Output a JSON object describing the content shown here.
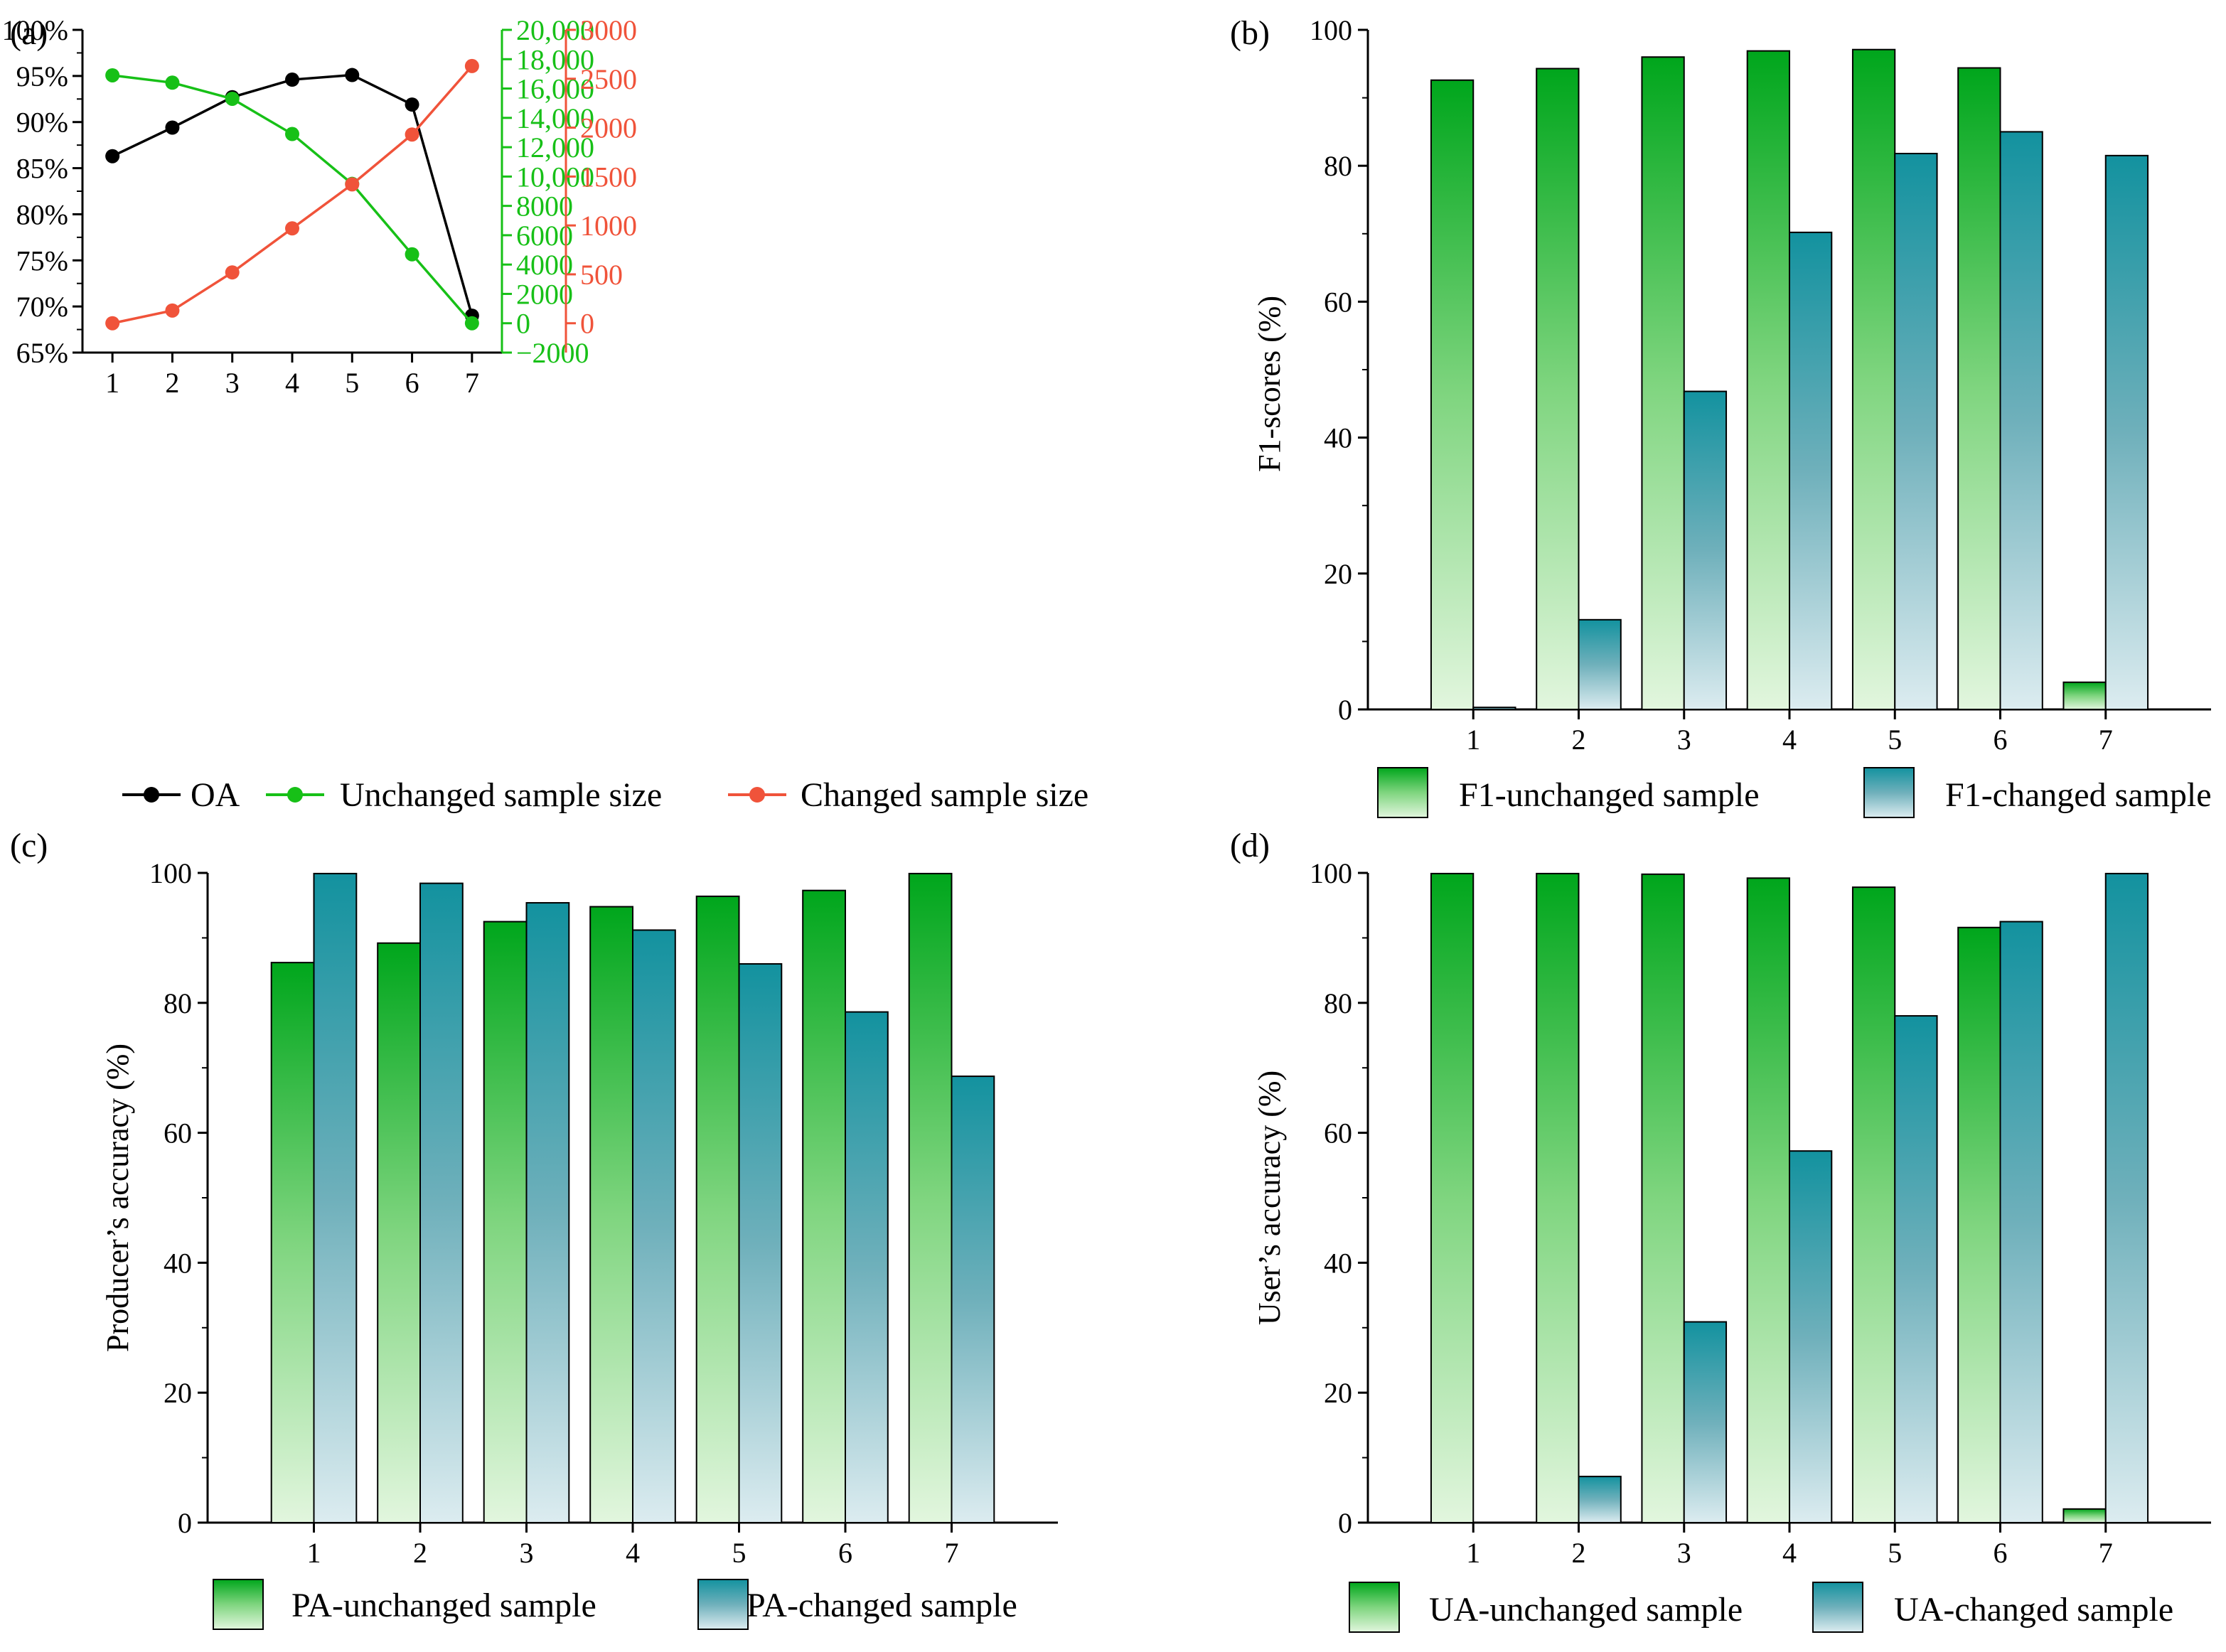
{
  "colors": {
    "oa": "#000000",
    "unchanged": "#17c017",
    "changed": "#f0533a",
    "green_top": "#00a61c",
    "green_bottom": "#dff5dc",
    "teal_top": "#13929f",
    "teal_bottom": "#dcecf0"
  },
  "chart_data": [
    {
      "panel": "(a)",
      "type": "line",
      "x": [
        1,
        2,
        3,
        4,
        5,
        6,
        7
      ],
      "xticks": [
        "1",
        "2",
        "3",
        "4",
        "5",
        "6",
        "7"
      ],
      "xlim": [
        0.5,
        7.5
      ],
      "axes": [
        {
          "id": "left",
          "ylim": [
            65,
            100
          ],
          "ticks": [
            65,
            70,
            75,
            80,
            85,
            90,
            95,
            100
          ],
          "tick_labels": [
            "65%",
            "70%",
            "75%",
            "80%",
            "85%",
            "90%",
            "95%",
            "100%"
          ],
          "color": "#000000"
        },
        {
          "id": "mid",
          "ylim": [
            -2000,
            20000
          ],
          "ticks": [
            -2000,
            0,
            2000,
            4000,
            6000,
            8000,
            10000,
            12000,
            14000,
            16000,
            18000,
            20000
          ],
          "tick_labels": [
            "−2000",
            "0",
            "2000",
            "4000",
            "6000",
            "8000",
            "10,000",
            "12,000",
            "14,000",
            "16,000",
            "18,000",
            "20,000"
          ],
          "color": "#17c017"
        },
        {
          "id": "right",
          "ylim": [
            -300,
            3000
          ],
          "ticks": [
            0,
            500,
            1000,
            1500,
            2000,
            2500,
            3000
          ],
          "tick_labels": [
            "0",
            "500",
            "1000",
            "1500",
            "2000",
            "2500",
            "3000"
          ],
          "color": "#f0533a"
        }
      ],
      "series": [
        {
          "name": "OA",
          "axis": "left",
          "color": "#000000",
          "values": [
            86.3,
            89.4,
            92.7,
            94.6,
            95.1,
            91.9,
            69.0
          ]
        },
        {
          "name": "Unchanged sample size",
          "axis": "mid",
          "color": "#17c017",
          "values": [
            16900,
            16400,
            15300,
            12900,
            9500,
            4700,
            0
          ]
        },
        {
          "name": "Changed sample size",
          "axis": "right",
          "color": "#f0533a",
          "values": [
            0,
            130,
            520,
            970,
            1420,
            1930,
            2630
          ]
        }
      ]
    },
    {
      "panel": "(b)",
      "type": "bar",
      "categories": [
        "1",
        "2",
        "3",
        "4",
        "5",
        "6",
        "7"
      ],
      "ylabel": "F1-scores (%)",
      "ylim": [
        0,
        100
      ],
      "yticks": [
        0,
        20,
        40,
        60,
        80,
        100
      ],
      "series": [
        {
          "name": "F1-unchanged sample",
          "style": "green",
          "values": [
            92.6,
            94.3,
            96.0,
            96.9,
            97.1,
            94.4,
            4.0
          ]
        },
        {
          "name": "F1-changed sample",
          "style": "teal",
          "values": [
            0.3,
            13.2,
            46.8,
            70.2,
            81.8,
            85.0,
            81.5
          ]
        }
      ]
    },
    {
      "panel": "(c)",
      "type": "bar",
      "categories": [
        "1",
        "2",
        "3",
        "4",
        "5",
        "6",
        "7"
      ],
      "ylabel": "Producer’s accuracy (%)",
      "ylim": [
        0,
        100
      ],
      "yticks": [
        0,
        20,
        40,
        60,
        80,
        100
      ],
      "series": [
        {
          "name": "PA-unchanged sample",
          "style": "green",
          "values": [
            86.2,
            89.2,
            92.5,
            94.8,
            96.4,
            97.3,
            99.9
          ]
        },
        {
          "name": "PA-changed sample",
          "style": "teal",
          "values": [
            99.9,
            98.4,
            95.4,
            91.2,
            86.0,
            78.6,
            68.7
          ]
        }
      ]
    },
    {
      "panel": "(d)",
      "type": "bar",
      "categories": [
        "1",
        "2",
        "3",
        "4",
        "5",
        "6",
        "7"
      ],
      "ylabel": "User’s accuracy (%)",
      "ylim": [
        0,
        100
      ],
      "yticks": [
        0,
        20,
        40,
        60,
        80,
        100
      ],
      "series": [
        {
          "name": "UA-unchanged sample",
          "style": "green",
          "values": [
            99.9,
            99.9,
            99.8,
            99.2,
            97.8,
            91.6,
            2.1
          ]
        },
        {
          "name": "UA-changed sample",
          "style": "teal",
          "values": [
            0,
            7.1,
            30.9,
            57.2,
            78.0,
            92.5,
            99.9
          ]
        }
      ]
    }
  ]
}
